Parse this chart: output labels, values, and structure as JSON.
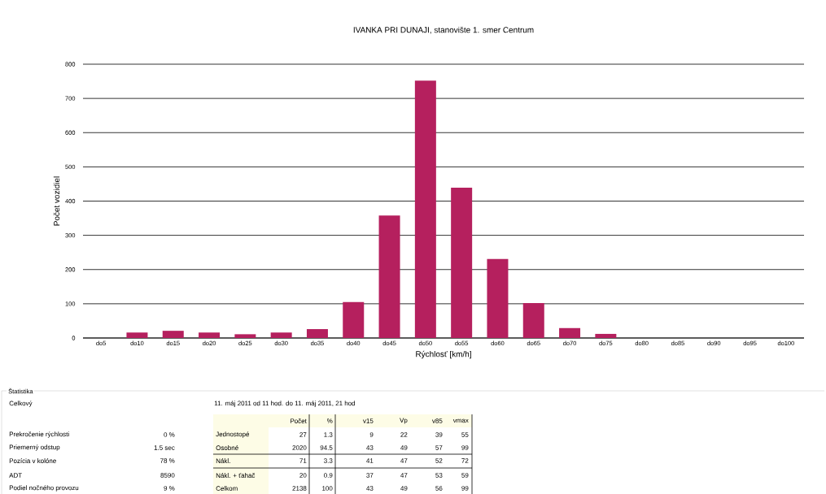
{
  "chart_data": {
    "type": "bar",
    "title": "IVANKA PRI DUNAJI, stanovište 1. smer Centrum",
    "xlabel": "Rýchlosť [km/h]",
    "ylabel": "Počet vozidiel",
    "categories": [
      "do5",
      "do10",
      "do15",
      "do20",
      "do25",
      "do30",
      "do35",
      "do40",
      "do45",
      "do50",
      "do55",
      "do60",
      "do65",
      "do70",
      "do75",
      "do80",
      "do85",
      "do90",
      "do95",
      "do100"
    ],
    "values": [
      0,
      16,
      21,
      16,
      11,
      16,
      26,
      105,
      358,
      752,
      439,
      231,
      102,
      29,
      12,
      0,
      0,
      0,
      0,
      0
    ],
    "color": "#b5205e",
    "ylim": [
      0,
      800
    ],
    "yticks": [
      0,
      100,
      200,
      300,
      400,
      500,
      600,
      700,
      800
    ],
    "grid": "y",
    "annotations": [
      "Štatistika",
      "Celkový",
      "11. máj 2011 od 11 hod. do 11. máj 2011, 21 hod",
      "Prekročenie rýchlosti",
      "0 %",
      "Priemerný odstup",
      "1.5 sec",
      "Pozícia v kolóne",
      "78 %",
      "ADT",
      "8590",
      "Podiel nočného provozu",
      "9 %",
      "Počet",
      "%",
      "v15",
      "Vp",
      "v85",
      "vmax",
      "Jednostopé",
      "27",
      "1.3",
      "9",
      "22",
      "39",
      "55",
      "Osobné",
      "2020",
      "94.5",
      "43",
      "49",
      "57",
      "99",
      "Nákl.",
      "71",
      "3.3",
      "41",
      "47",
      "52",
      "72",
      "Nákl. + ťahač",
      "20",
      "0.9",
      "37",
      "47",
      "53",
      "59",
      "Celkom",
      "2138",
      "100",
      "43",
      "49",
      "56",
      "99"
    ]
  }
}
